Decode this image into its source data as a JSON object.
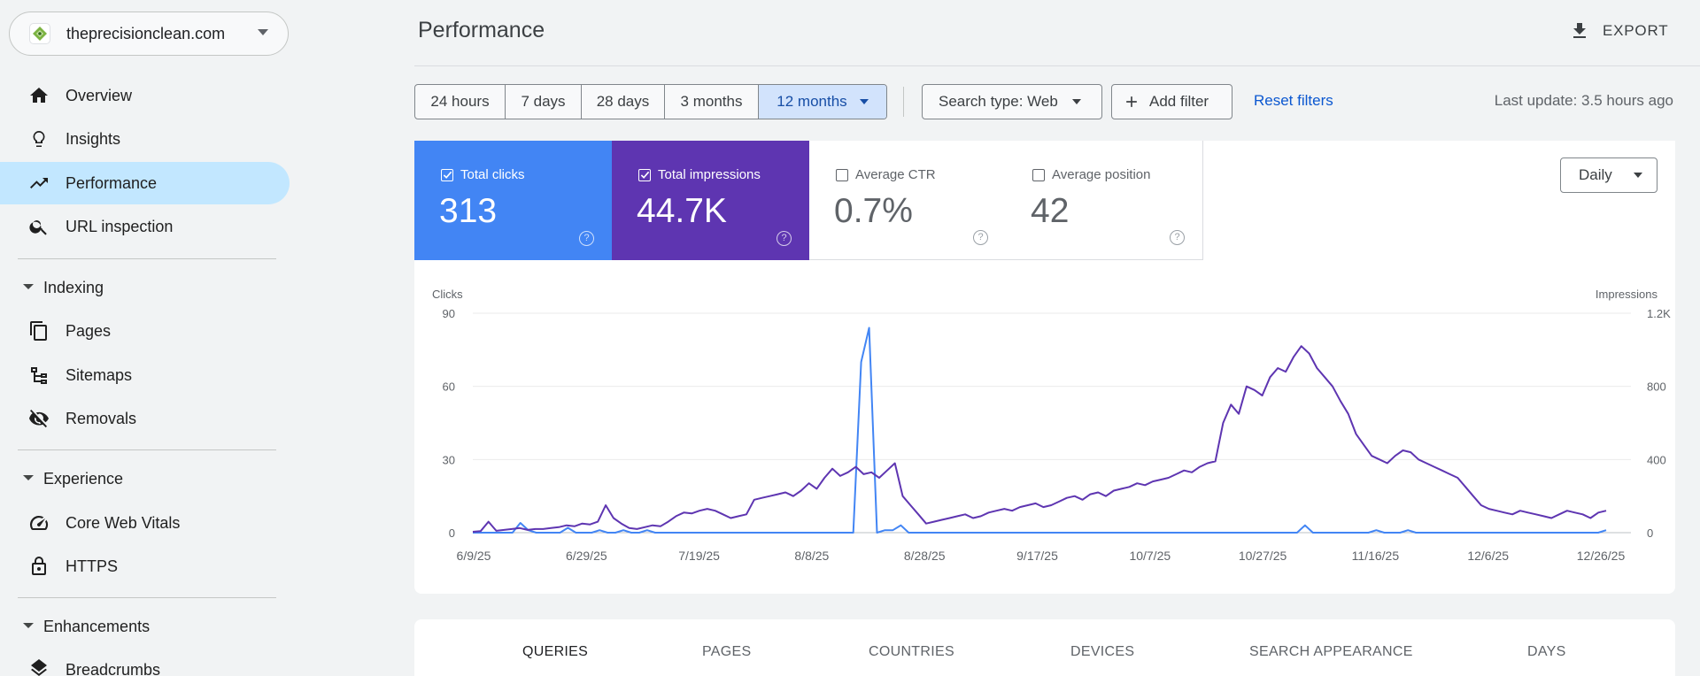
{
  "property": {
    "name": "theprecisionclean.com"
  },
  "nav": {
    "overview": "Overview",
    "insights": "Insights",
    "performance": "Performance",
    "url_inspection": "URL inspection",
    "indexing": "Indexing",
    "pages": "Pages",
    "sitemaps": "Sitemaps",
    "removals": "Removals",
    "experience": "Experience",
    "core_web_vitals": "Core Web Vitals",
    "https": "HTTPS",
    "enhancements": "Enhancements",
    "breadcrumbs": "Breadcrumbs"
  },
  "header": {
    "title": "Performance",
    "export": "EXPORT"
  },
  "filters": {
    "ranges": [
      "24 hours",
      "7 days",
      "28 days",
      "3 months",
      "12 months"
    ],
    "selected_range": "12 months",
    "search_type": "Search type: Web",
    "add_filter": "Add filter",
    "reset": "Reset filters",
    "last_update": "Last update: 3.5 hours ago"
  },
  "metrics": {
    "clicks": {
      "label": "Total clicks",
      "value": "313",
      "checked": true
    },
    "impressions": {
      "label": "Total impressions",
      "value": "44.7K",
      "checked": true
    },
    "ctr": {
      "label": "Average CTR",
      "value": "0.7%",
      "checked": false
    },
    "position": {
      "label": "Average position",
      "value": "42",
      "checked": false
    }
  },
  "granularity": "Daily",
  "tabs": [
    "QUERIES",
    "PAGES",
    "COUNTRIES",
    "DEVICES",
    "SEARCH APPEARANCE",
    "DAYS"
  ],
  "active_tab": "QUERIES",
  "colors": {
    "clicks": "#4285f4",
    "impressions": "#5e35b1",
    "selected": "#c2e7ff",
    "link": "#0b57d0"
  },
  "chart_data": {
    "type": "line",
    "ylabel_left": "Clicks",
    "ylabel_right": "Impressions",
    "x_tick_labels": [
      "6/9/25",
      "6/29/25",
      "7/19/25",
      "8/8/25",
      "8/28/25",
      "9/17/25",
      "10/7/25",
      "10/27/25",
      "11/16/25",
      "12/6/25",
      "12/26/25"
    ],
    "y_left_ticks": [
      "0",
      "30",
      "60",
      "90"
    ],
    "y_right_ticks": [
      "0",
      "400",
      "800",
      "1.2K"
    ],
    "y_left_range": [
      0,
      90
    ],
    "y_right_range": [
      0,
      1200
    ],
    "x_start_date": "6/7/25",
    "x_step_days": 5,
    "series": [
      {
        "name": "Clicks",
        "axis": "left",
        "color": "#4285f4",
        "values": [
          0,
          0,
          0,
          0,
          0,
          0,
          4,
          1,
          0,
          0,
          0,
          0,
          2,
          0,
          0,
          0,
          1,
          0,
          0,
          1,
          0,
          0,
          1,
          0,
          0,
          0,
          0,
          0,
          0,
          0,
          0,
          0,
          0,
          0,
          0,
          0,
          0,
          0,
          0,
          0,
          0,
          0,
          0,
          0,
          0,
          0,
          0,
          0,
          0,
          70,
          84,
          0,
          1,
          1,
          3,
          0,
          0,
          0,
          0,
          0,
          0,
          0,
          0,
          0,
          0,
          0,
          0,
          0,
          0,
          0,
          0,
          0,
          0,
          0,
          0,
          0,
          0,
          0,
          0,
          0,
          0,
          0,
          0,
          0,
          0,
          0,
          0,
          0,
          0,
          0,
          0,
          0,
          0,
          0,
          0,
          0,
          0,
          0,
          0,
          0,
          0,
          0,
          0,
          0,
          0,
          3,
          0,
          0,
          0,
          0,
          0,
          0,
          0,
          0,
          1,
          0,
          0,
          0,
          1,
          0,
          0,
          0,
          0,
          0,
          0,
          0,
          0,
          0,
          0,
          0,
          0,
          0,
          0,
          0,
          0,
          0,
          0,
          0,
          0,
          0,
          0,
          0,
          0,
          1
        ]
      },
      {
        "name": "Impressions",
        "axis": "right",
        "color": "#5e35b1",
        "values": [
          5,
          8,
          60,
          10,
          15,
          20,
          25,
          15,
          20,
          20,
          25,
          30,
          40,
          35,
          50,
          45,
          60,
          150,
          80,
          50,
          25,
          20,
          30,
          40,
          35,
          60,
          90,
          110,
          105,
          120,
          130,
          120,
          100,
          80,
          90,
          100,
          180,
          190,
          200,
          210,
          220,
          200,
          230,
          270,
          240,
          300,
          350,
          310,
          330,
          360,
          320,
          330,
          300,
          340,
          380,
          200,
          150,
          100,
          50,
          60,
          70,
          80,
          90,
          100,
          80,
          90,
          110,
          120,
          130,
          120,
          140,
          150,
          160,
          140,
          150,
          170,
          190,
          200,
          180,
          210,
          220,
          200,
          230,
          240,
          250,
          270,
          260,
          280,
          290,
          300,
          320,
          340,
          330,
          360,
          380,
          390,
          600,
          700,
          650,
          800,
          780,
          750,
          850,
          900,
          880,
          960,
          1020,
          980,
          900,
          850,
          800,
          720,
          650,
          540,
          480,
          420,
          400,
          380,
          420,
          450,
          440,
          400,
          380,
          360,
          340,
          320,
          300,
          250,
          200,
          150,
          130,
          120,
          110,
          100,
          120,
          110,
          100,
          90,
          80,
          100,
          120,
          110,
          100,
          80,
          110,
          120
        ]
      }
    ]
  }
}
